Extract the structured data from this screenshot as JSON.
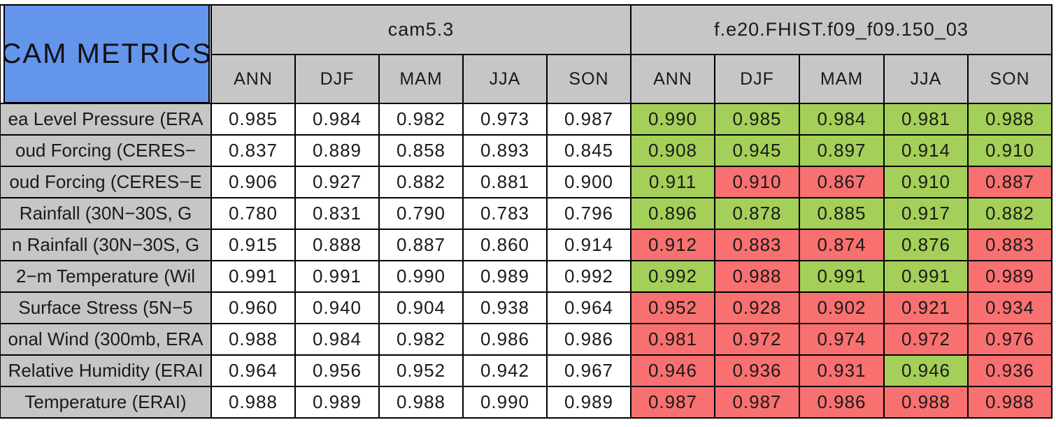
{
  "title": "CAM METRICS",
  "colors": {
    "header_gray": "#c6c6c6",
    "title_blue": "#6495ed",
    "better_green": "#a4cf58",
    "worse_red": "#f87070",
    "grid_line": "#000000"
  },
  "chart_data": {
    "type": "table",
    "title": "CAM METRICS",
    "column_groups": [
      {
        "label": "cam5.3",
        "seasons": [
          "ANN",
          "DJF",
          "MAM",
          "JJA",
          "SON"
        ]
      },
      {
        "label": "f.e20.FHIST.f09_f09.150_03",
        "seasons": [
          "ANN",
          "DJF",
          "MAM",
          "JJA",
          "SON"
        ]
      }
    ],
    "legend_note": "",
    "rows": [
      {
        "label": "ea Level Pressure (ERA",
        "cam53": [
          "0.985",
          "0.984",
          "0.982",
          "0.973",
          "0.987"
        ],
        "fhist": [
          {
            "v": "0.990",
            "c": "green"
          },
          {
            "v": "0.985",
            "c": "green"
          },
          {
            "v": "0.984",
            "c": "green"
          },
          {
            "v": "0.981",
            "c": "green"
          },
          {
            "v": "0.988",
            "c": "green"
          }
        ]
      },
      {
        "label": "oud Forcing (CERES−",
        "cam53": [
          "0.837",
          "0.889",
          "0.858",
          "0.893",
          "0.845"
        ],
        "fhist": [
          {
            "v": "0.908",
            "c": "green"
          },
          {
            "v": "0.945",
            "c": "green"
          },
          {
            "v": "0.897",
            "c": "green"
          },
          {
            "v": "0.914",
            "c": "green"
          },
          {
            "v": "0.910",
            "c": "green"
          }
        ]
      },
      {
        "label": "oud Forcing (CERES−E",
        "cam53": [
          "0.906",
          "0.927",
          "0.882",
          "0.881",
          "0.900"
        ],
        "fhist": [
          {
            "v": "0.911",
            "c": "green"
          },
          {
            "v": "0.910",
            "c": "red"
          },
          {
            "v": "0.867",
            "c": "red"
          },
          {
            "v": "0.910",
            "c": "green"
          },
          {
            "v": "0.887",
            "c": "red"
          }
        ]
      },
      {
        "label": "Rainfall (30N−30S, G",
        "cam53": [
          "0.780",
          "0.831",
          "0.790",
          "0.783",
          "0.796"
        ],
        "fhist": [
          {
            "v": "0.896",
            "c": "green"
          },
          {
            "v": "0.878",
            "c": "green"
          },
          {
            "v": "0.885",
            "c": "green"
          },
          {
            "v": "0.917",
            "c": "green"
          },
          {
            "v": "0.882",
            "c": "green"
          }
        ]
      },
      {
        "label": "n Rainfall (30N−30S, G",
        "cam53": [
          "0.915",
          "0.888",
          "0.887",
          "0.860",
          "0.914"
        ],
        "fhist": [
          {
            "v": "0.912",
            "c": "red"
          },
          {
            "v": "0.883",
            "c": "red"
          },
          {
            "v": "0.874",
            "c": "red"
          },
          {
            "v": "0.876",
            "c": "green"
          },
          {
            "v": "0.883",
            "c": "red"
          }
        ]
      },
      {
        "label": "2−m Temperature (Wil",
        "cam53": [
          "0.991",
          "0.991",
          "0.990",
          "0.989",
          "0.992"
        ],
        "fhist": [
          {
            "v": "0.992",
            "c": "green"
          },
          {
            "v": "0.988",
            "c": "red"
          },
          {
            "v": "0.991",
            "c": "green"
          },
          {
            "v": "0.991",
            "c": "green"
          },
          {
            "v": "0.989",
            "c": "red"
          }
        ]
      },
      {
        "label": "Surface Stress (5N−5",
        "cam53": [
          "0.960",
          "0.940",
          "0.904",
          "0.938",
          "0.964"
        ],
        "fhist": [
          {
            "v": "0.952",
            "c": "red"
          },
          {
            "v": "0.928",
            "c": "red"
          },
          {
            "v": "0.902",
            "c": "red"
          },
          {
            "v": "0.921",
            "c": "red"
          },
          {
            "v": "0.934",
            "c": "red"
          }
        ]
      },
      {
        "label": "onal Wind (300mb, ERA",
        "cam53": [
          "0.988",
          "0.984",
          "0.982",
          "0.986",
          "0.986"
        ],
        "fhist": [
          {
            "v": "0.981",
            "c": "red"
          },
          {
            "v": "0.972",
            "c": "red"
          },
          {
            "v": "0.974",
            "c": "red"
          },
          {
            "v": "0.972",
            "c": "red"
          },
          {
            "v": "0.976",
            "c": "red"
          }
        ]
      },
      {
        "label": "Relative Humidity (ERAI",
        "cam53": [
          "0.964",
          "0.956",
          "0.952",
          "0.942",
          "0.967"
        ],
        "fhist": [
          {
            "v": "0.946",
            "c": "red"
          },
          {
            "v": "0.936",
            "c": "red"
          },
          {
            "v": "0.931",
            "c": "red"
          },
          {
            "v": "0.946",
            "c": "green"
          },
          {
            "v": "0.936",
            "c": "red"
          }
        ]
      },
      {
        "label": "Temperature (ERAI)",
        "cam53": [
          "0.988",
          "0.989",
          "0.988",
          "0.990",
          "0.989"
        ],
        "fhist": [
          {
            "v": "0.987",
            "c": "red"
          },
          {
            "v": "0.987",
            "c": "red"
          },
          {
            "v": "0.986",
            "c": "red"
          },
          {
            "v": "0.988",
            "c": "red"
          },
          {
            "v": "0.988",
            "c": "red"
          }
        ]
      }
    ]
  }
}
